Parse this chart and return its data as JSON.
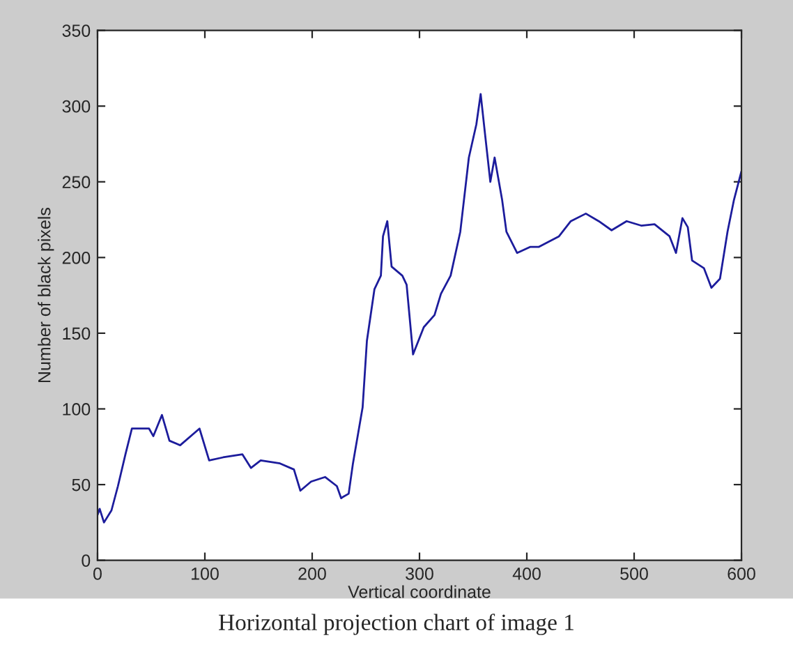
{
  "chart_data": {
    "type": "line",
    "xlabel": "Vertical coordinate",
    "ylabel": "Number of black pixels",
    "annotations": [
      "Horizontal projection chart of image 1"
    ],
    "xlim": [
      0,
      600
    ],
    "xticks": [
      0,
      100,
      200,
      300,
      400,
      500,
      600
    ],
    "ylim": [
      0,
      350
    ],
    "yticks": [
      0,
      50,
      100,
      150,
      200,
      250,
      300,
      350
    ],
    "grid": false,
    "legend": false,
    "series": [
      {
        "color": "#1c1c9c",
        "x": [
          0,
          2,
          6,
          13,
          19,
          26,
          32,
          48,
          52,
          60,
          67,
          77,
          95,
          104,
          117,
          135,
          143,
          152,
          170,
          183,
          189,
          199,
          212,
          223,
          227,
          229,
          234,
          238,
          247,
          251,
          258,
          264,
          266,
          270,
          274,
          284,
          288,
          294,
          304,
          314,
          320,
          329,
          338,
          346,
          353,
          357,
          361,
          366,
          370,
          377,
          381,
          391,
          403,
          411,
          430,
          441,
          455,
          467,
          479,
          493,
          507,
          519,
          533,
          539,
          545,
          550,
          554,
          565,
          572,
          580,
          587,
          593,
          600
        ],
        "values": [
          30,
          34,
          25,
          33,
          49,
          70,
          87,
          87,
          82,
          96,
          79,
          76,
          87,
          66,
          68,
          70,
          61,
          66,
          64,
          60,
          46,
          52,
          55,
          49,
          41,
          42,
          44,
          64,
          101,
          145,
          179,
          188,
          214,
          224,
          194,
          188,
          182,
          136,
          154,
          162,
          176,
          188,
          217,
          266,
          288,
          308,
          282,
          250,
          266,
          238,
          217,
          203,
          207,
          207,
          214,
          224,
          229,
          224,
          218,
          224,
          221,
          222,
          214,
          203,
          226,
          220,
          198,
          193,
          180,
          186,
          217,
          238,
          257
        ]
      }
    ]
  }
}
